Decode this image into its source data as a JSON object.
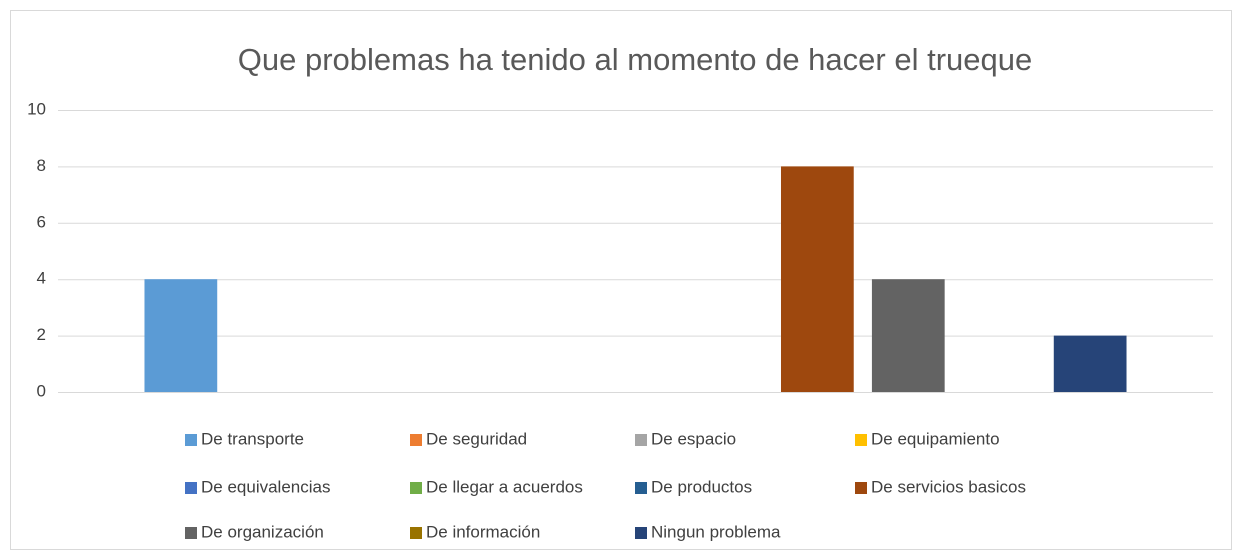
{
  "chart_data": {
    "type": "bar",
    "title": "Que problemas ha tenido al momento de hacer el trueque",
    "categories": [
      null
    ],
    "series": [
      {
        "name": "De transporte",
        "color": "#5b9bd5",
        "values": [
          4
        ]
      },
      {
        "name": "De seguridad",
        "color": "#ed7d31",
        "values": [
          0
        ]
      },
      {
        "name": "De espacio",
        "color": "#a5a5a5",
        "values": [
          0
        ]
      },
      {
        "name": "De equipamiento",
        "color": "#ffc000",
        "values": [
          0
        ]
      },
      {
        "name": "De equivalencias",
        "color": "#4472c4",
        "values": [
          0
        ]
      },
      {
        "name": "De llegar a acuerdos",
        "color": "#70ad47",
        "values": [
          0
        ]
      },
      {
        "name": "De productos",
        "color": "#255e91",
        "values": [
          0
        ]
      },
      {
        "name": "De servicios basicos",
        "color": "#9e480e",
        "values": [
          8
        ]
      },
      {
        "name": "De organización",
        "color": "#636363",
        "values": [
          4
        ]
      },
      {
        "name": "De información",
        "color": "#997300",
        "values": [
          0
        ]
      },
      {
        "name": "Ningun problema",
        "color": "#264478",
        "values": [
          2
        ]
      }
    ],
    "ylim": [
      0,
      10
    ],
    "yticks": [
      0,
      2,
      4,
      6,
      8,
      10
    ],
    "grid": true,
    "legend": "bottom"
  }
}
